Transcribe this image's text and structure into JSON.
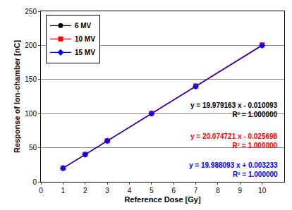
{
  "chart_data": {
    "type": "line",
    "x_label": "Reference Dose [Gy]",
    "y_label": "Response of Ion-chamber [nC]",
    "x": [
      1,
      2,
      3,
      5,
      7,
      10
    ],
    "series": [
      {
        "name": "6 MV",
        "color": "#000000",
        "marker": "circle",
        "values": [
          19.97,
          39.95,
          59.93,
          99.89,
          139.84,
          199.78
        ]
      },
      {
        "name": "10 MV",
        "color": "#ff0000",
        "marker": "square",
        "values": [
          20.05,
          40.12,
          60.2,
          100.35,
          140.5,
          200.72
        ]
      },
      {
        "name": "15 MV",
        "color": "#0000ff",
        "marker": "diamond",
        "values": [
          19.99,
          39.98,
          59.97,
          99.94,
          139.92,
          199.88
        ]
      }
    ],
    "annotations": [
      {
        "lines": [
          "y = 19.979163 x - 0.010093",
          "R² = 1.000000"
        ],
        "color": "#000000"
      },
      {
        "lines": [
          "y = 20.074721 x - 0.025698",
          "R² = 1.000000"
        ],
        "color": "#ff0000"
      },
      {
        "lines": [
          "y = 19.988093 x + 0.003233",
          "R² = 1.000000"
        ],
        "color": "#0000ff"
      }
    ],
    "xlim": [
      0,
      11
    ],
    "xticks": [
      0,
      1,
      2,
      3,
      4,
      5,
      6,
      7,
      8,
      9,
      10
    ],
    "ylim": [
      0,
      250
    ],
    "yticks": [
      0,
      50,
      100,
      150,
      200,
      250
    ],
    "grid": true,
    "legend": "upper left"
  }
}
